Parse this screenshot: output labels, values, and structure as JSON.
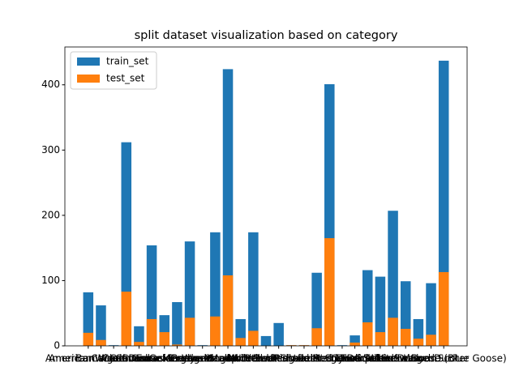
{
  "chart_data": {
    "type": "bar",
    "title": "split dataset visualization based on category",
    "categories": [
      "American Wigeon",
      "American Wood Duck",
      "Barnacle Goose",
      "Canada Goose",
      "Canvasback",
      "Common Goldeneye",
      "Common Merganser",
      "Eurasian Wigeon",
      "Gadwall",
      "Greater Scaup",
      "Green-winged Teal",
      "Mallard",
      "Mandarin Duck",
      "Mute Swan",
      "Northern Pintail",
      "Northern Shoveler",
      "Redhead",
      "Red-breasted Merganser",
      "Ring-necked Duck",
      "Ross's Goose",
      "Ruddy Duck",
      "Snow Goose",
      "Surf Scoter",
      "Trumpeter Swan",
      "Tufted Duck",
      "Tundra Swan",
      "White-winged Scoter",
      "Wood Duck",
      "Snow Goose (Blue Goose)"
    ],
    "series": [
      {
        "name": "train_set",
        "color": "#1f77b4",
        "values": [
          82,
          62,
          1,
          312,
          30,
          154,
          47,
          67,
          160,
          1,
          174,
          424,
          41,
          174,
          15,
          35,
          1,
          1,
          112,
          401,
          1,
          16,
          116,
          106,
          207,
          99,
          41,
          96,
          437
        ]
      },
      {
        "name": "test_set",
        "color": "#ff7f0e",
        "values": [
          20,
          9,
          0,
          83,
          6,
          41,
          21,
          2,
          43,
          0,
          45,
          108,
          12,
          23,
          0,
          0,
          1,
          1,
          27,
          165,
          0,
          5,
          36,
          21,
          43,
          26,
          11,
          17,
          113
        ]
      }
    ],
    "ylim": [
      0,
      458
    ],
    "yticks": [
      0,
      100,
      200,
      300,
      400
    ],
    "legend": "upper left"
  }
}
